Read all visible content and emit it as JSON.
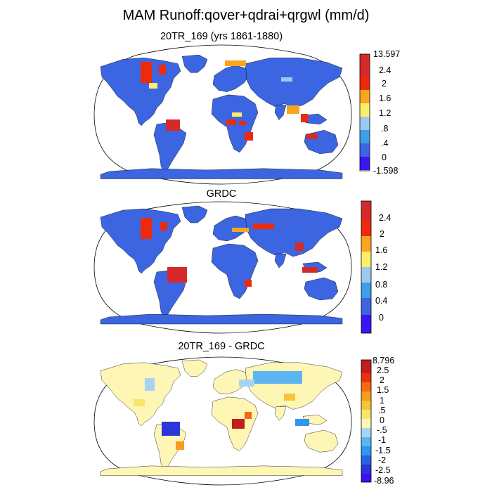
{
  "title": "MAM Runoff:qover+qdrai+qrgwl (mm/d)",
  "panels": [
    {
      "id": "model",
      "title": "20TR_169 (yrs 1861-1880)",
      "colorbar": {
        "colors": [
          "#3b14f2",
          "#3c65e2",
          "#3e9fe8",
          "#9cc9f0",
          "#fbee6c",
          "#f8a520",
          "#ee2a0c",
          "#d52a2a"
        ],
        "labels": [
          "13.597",
          "2.4",
          "2",
          "1.6",
          "1.2",
          ".8",
          ".4",
          "0",
          "-1.598"
        ]
      }
    },
    {
      "id": "obs",
      "title": "GRDC",
      "colorbar": {
        "colors": [
          "#3b14f2",
          "#3c65e2",
          "#3e9fe8",
          "#9cc9f0",
          "#fbee6c",
          "#f8a520",
          "#ee2a0c",
          "#d52a2a"
        ],
        "labels": [
          "2.4",
          "2",
          "1.6",
          "1.2",
          "0.8",
          "0.4",
          "0"
        ]
      }
    },
    {
      "id": "diff",
      "title": "20TR_169 - GRDC",
      "colorbar": {
        "colors": [
          "#3a12f0",
          "#2b35d8",
          "#2a62e6",
          "#2f95ef",
          "#5cb5f2",
          "#a8d4f4",
          "#fdf6b5",
          "#fbe46a",
          "#f8c437",
          "#f79c1e",
          "#f46a13",
          "#e8320d",
          "#c31d1d"
        ],
        "labels": [
          "8.796",
          "2.5",
          "2",
          "1.5",
          "1",
          ".5",
          "0",
          "-.5",
          "-1",
          "-1.5",
          "-2",
          "-2.5",
          "-8.96"
        ]
      }
    }
  ]
}
